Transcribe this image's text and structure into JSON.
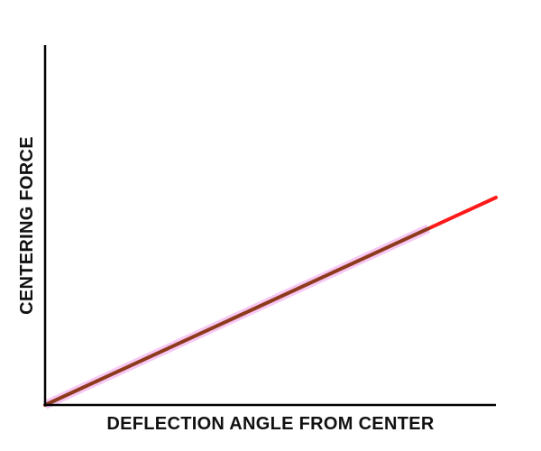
{
  "chart_data": {
    "type": "line",
    "title": "",
    "xlabel": "DEFLECTION ANGLE FROM CENTER",
    "ylabel": "CENTERING FORCE",
    "xlim": [
      0,
      10
    ],
    "ylim": [
      0,
      10
    ],
    "grid": false,
    "ticks": false,
    "series": [
      {
        "x": [
          0,
          10
        ],
        "y": [
          0,
          5.75
        ],
        "color": "#ff1a1a"
      },
      {
        "x": [
          0,
          8.5
        ],
        "y": [
          0,
          4.89
        ],
        "color": "#8e3a1c",
        "halo": "#f7c8f4"
      }
    ]
  }
}
